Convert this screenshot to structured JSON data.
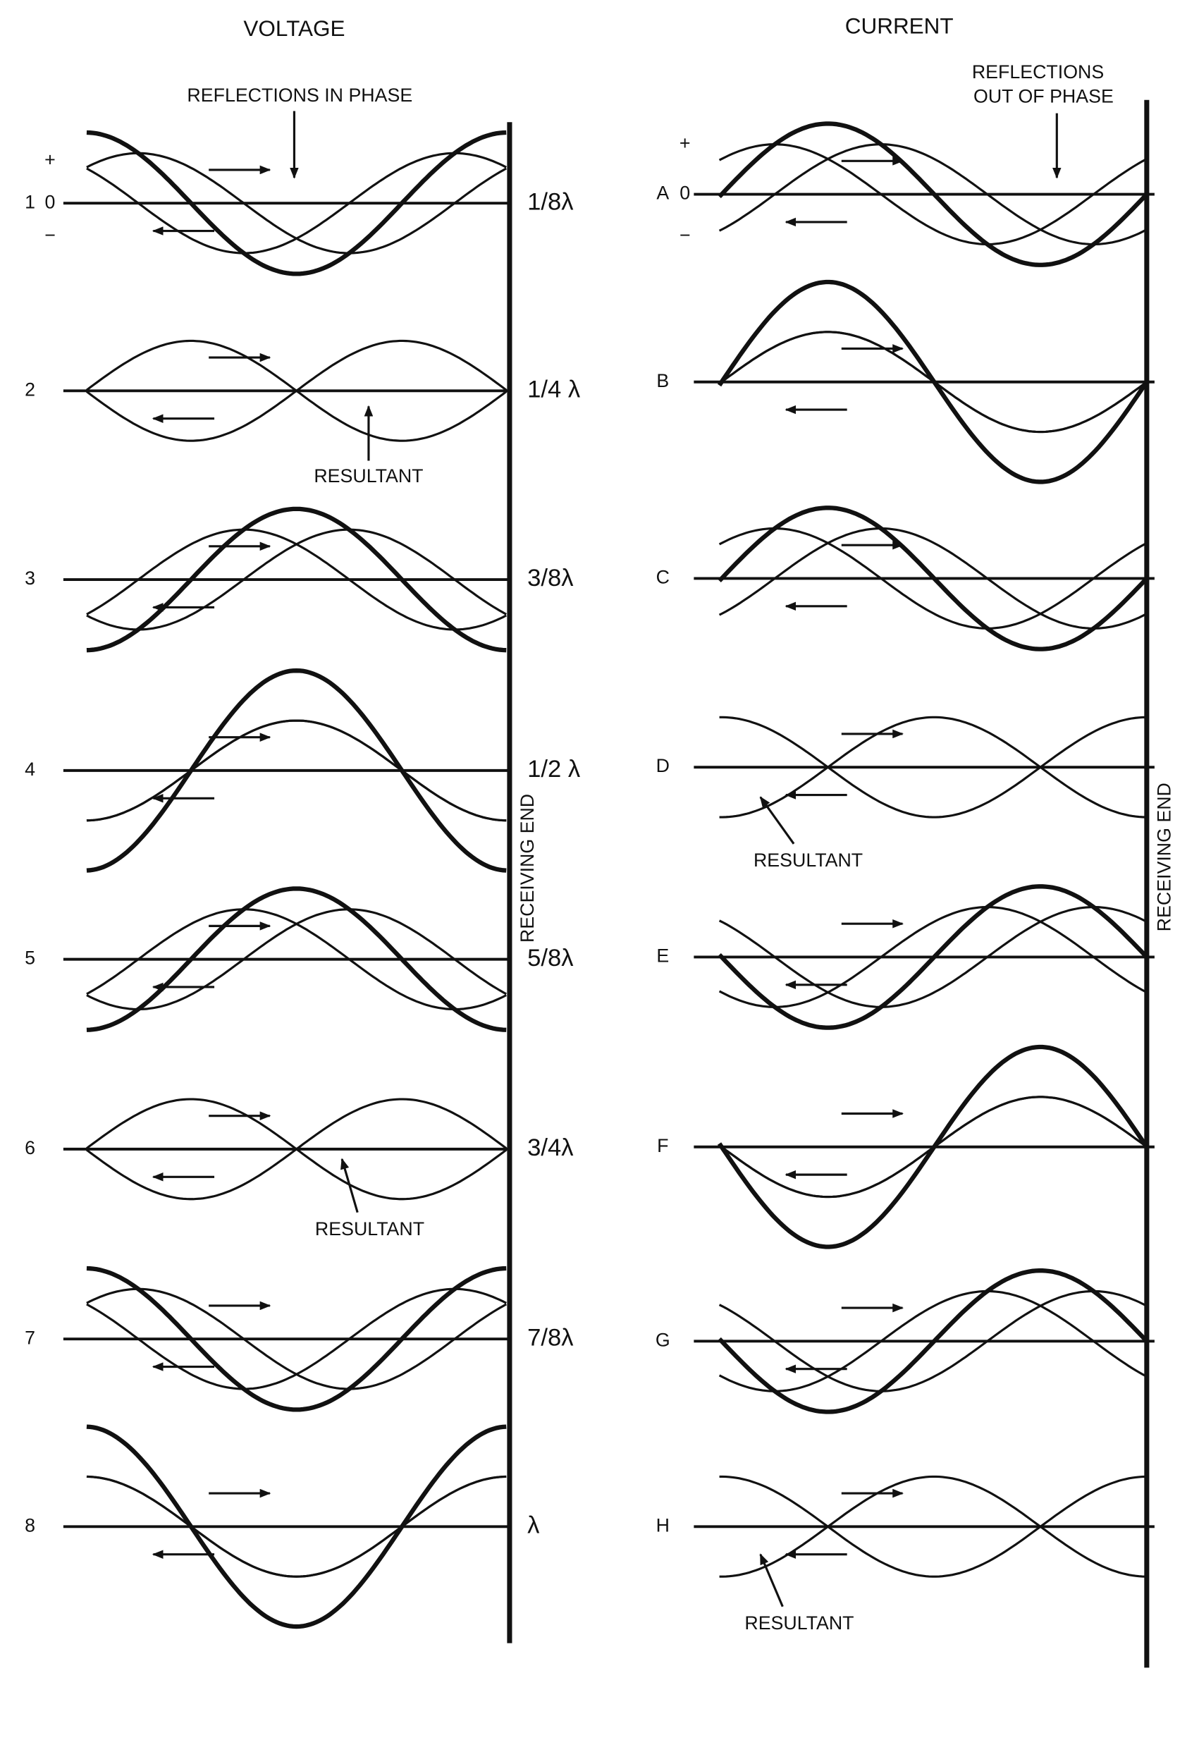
{
  "voltage": {
    "title": "VOLTAGE",
    "annotation": "REFLECTIONS IN PHASE",
    "receiving_end": "RECEIVING END",
    "signs": {
      "plus": "+",
      "zero": "0",
      "minus": "−"
    },
    "resultant_labels": [
      "RESULTANT",
      "RESULTANT"
    ],
    "rows": [
      {
        "label": "1",
        "distance": "1/8λ"
      },
      {
        "label": "2",
        "distance": "1/4 λ"
      },
      {
        "label": "3",
        "distance": "3/8λ"
      },
      {
        "label": "4",
        "distance": "1/2 λ"
      },
      {
        "label": "5",
        "distance": "5/8λ"
      },
      {
        "label": "6",
        "distance": "3/4λ"
      },
      {
        "label": "7",
        "distance": "7/8λ"
      },
      {
        "label": "8",
        "distance": "λ"
      }
    ]
  },
  "current": {
    "title": "CURRENT",
    "annotation": [
      "REFLECTIONS",
      "OUT OF PHASE"
    ],
    "receiving_end": "RECEIVING END",
    "signs": {
      "plus": "+",
      "zero": "0",
      "minus": "−"
    },
    "resultant_labels": [
      "RESULTANT",
      "RESULTANT"
    ],
    "rows": [
      {
        "label": "A"
      },
      {
        "label": "B"
      },
      {
        "label": "C"
      },
      {
        "label": "D"
      },
      {
        "label": "E"
      },
      {
        "label": "F"
      },
      {
        "label": "G"
      },
      {
        "label": "H"
      }
    ]
  }
}
